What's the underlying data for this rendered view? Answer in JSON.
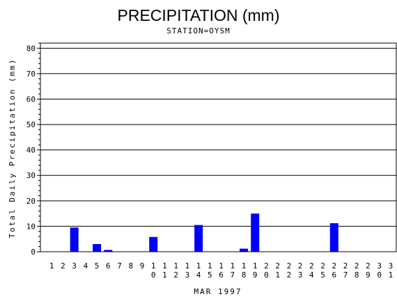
{
  "chart_data": {
    "type": "bar",
    "title": "PRECIPITATION (mm)",
    "subtitle": "STATION=OYSM",
    "xlabel": "MAR 1997",
    "ylabel": "Total Daily Precipitation (mm)",
    "ylim": [
      0,
      82
    ],
    "yticks": [
      0,
      10,
      20,
      30,
      40,
      50,
      60,
      70,
      80
    ],
    "grid": true,
    "bar_color": "#0000ff",
    "categories": [
      "1",
      "2",
      "3",
      "4",
      "5",
      "6",
      "7",
      "8",
      "9",
      "10",
      "11",
      "12",
      "13",
      "14",
      "15",
      "16",
      "17",
      "18",
      "19",
      "20",
      "21",
      "22",
      "23",
      "24",
      "25",
      "26",
      "27",
      "28",
      "29",
      "30",
      "31"
    ],
    "values": [
      0,
      0,
      9.5,
      0,
      3,
      0.7,
      0,
      0,
      0,
      5.8,
      0,
      0,
      0,
      10.5,
      0,
      0,
      0,
      1.2,
      15,
      0,
      0,
      0,
      0,
      0,
      0,
      11.2,
      0,
      0,
      0,
      0,
      0
    ]
  }
}
